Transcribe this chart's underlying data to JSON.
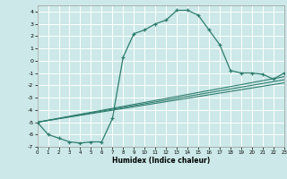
{
  "xlabel": "Humidex (Indice chaleur)",
  "bg_color": "#cce8e8",
  "grid_color": "#ffffff",
  "line_color": "#2e7d6e",
  "xlim": [
    0,
    23
  ],
  "ylim": [
    -7,
    4.5
  ],
  "xticks": [
    0,
    1,
    2,
    3,
    4,
    5,
    6,
    7,
    8,
    9,
    10,
    11,
    12,
    13,
    14,
    15,
    16,
    17,
    18,
    19,
    20,
    21,
    22,
    23
  ],
  "yticks": [
    -7,
    -6,
    -5,
    -4,
    -3,
    -2,
    -1,
    0,
    1,
    2,
    3,
    4
  ],
  "curve1_x": [
    0,
    1,
    2,
    3,
    4,
    5,
    6,
    7,
    8,
    9,
    10,
    11,
    12,
    13,
    14,
    15,
    16,
    17,
    18,
    19,
    20,
    21,
    22,
    23
  ],
  "curve1_y": [
    -5.0,
    -6.0,
    -6.3,
    -6.6,
    -6.7,
    -6.6,
    -6.6,
    -4.7,
    0.3,
    2.2,
    2.5,
    3.0,
    3.3,
    4.1,
    4.1,
    3.7,
    2.5,
    1.3,
    -0.8,
    -1.0,
    -1.0,
    -1.1,
    -1.5,
    -1.0
  ],
  "curve2_x": [
    0,
    23
  ],
  "curve2_y": [
    -5.0,
    -1.3
  ],
  "curve3_x": [
    0,
    23
  ],
  "curve3_y": [
    -5.0,
    -1.8
  ],
  "curve4_x": [
    0,
    23
  ],
  "curve4_y": [
    -5.0,
    -1.55
  ]
}
